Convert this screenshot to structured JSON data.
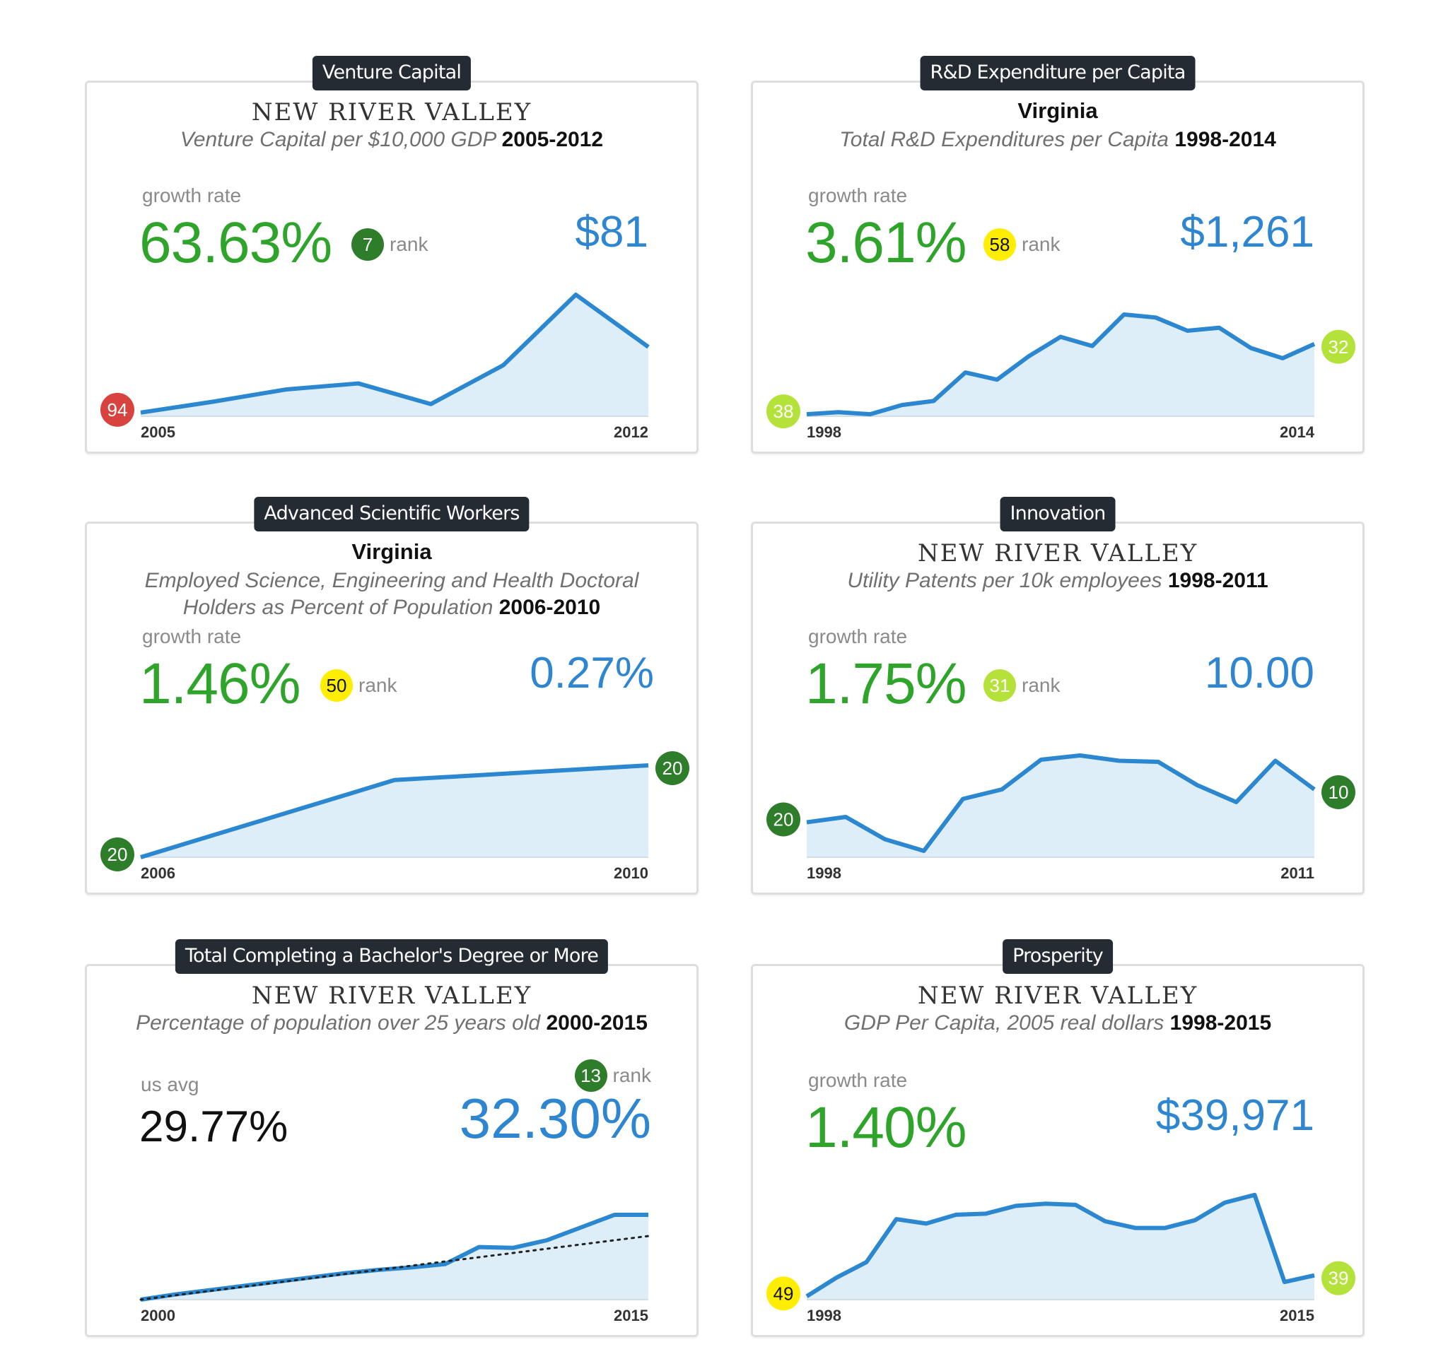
{
  "colors": {
    "tag_bg": "#252b33",
    "growth": "#2ea52a",
    "value": "#2f86d0",
    "line": "#2a87d0",
    "area": "#ddeef9",
    "badge_red": "#d9433f",
    "badge_dark_green": "#2e7d2a",
    "badge_lime": "#b5e23a",
    "badge_yellow": "#ffee00"
  },
  "common": {
    "growth_label": "growth rate",
    "rank_label": "rank",
    "us_avg_label": "us avg"
  },
  "cards": [
    {
      "tag": "Venture Capital",
      "region": "NEW RIVER VALLEY",
      "subtitle": "Venture Capital per $10,000 GDP",
      "years": "2005-2012",
      "growth": "63.63%",
      "rank": "7",
      "rank_color": "#2e7d2a",
      "value": "$81"
    },
    {
      "tag": "R&D Expenditure per Capita",
      "region": "Virginia",
      "subtitle": "Total R&D Expenditures per Capita",
      "years": "1998-2014",
      "growth": "3.61%",
      "rank": "58",
      "rank_color": "#ffee00",
      "value": "$1,261"
    },
    {
      "tag": "Advanced Scientific Workers",
      "region": "Virginia",
      "subtitle_line1": "Employed Science, Engineering and Health Doctoral",
      "subtitle_line2": "Holders as Percent of Population",
      "years": "2006-2010",
      "growth": "1.46%",
      "rank": "50",
      "rank_color": "#ffee00",
      "value": "0.27%"
    },
    {
      "tag": "Innovation",
      "region": "NEW RIVER VALLEY",
      "subtitle": "Utility Patents per 10k employees",
      "years": "1998-2011",
      "growth": "1.75%",
      "rank": "31",
      "rank_color": "#b5e23a",
      "value": "10.00"
    },
    {
      "tag": "Total Completing a Bachelor's Degree or More",
      "region": "NEW RIVER VALLEY",
      "subtitle": "Percentage of population over 25 years old",
      "years": "2000-2015",
      "us_avg": "29.77%",
      "rank": "13",
      "rank_color": "#2e7d2a",
      "value": "32.30%"
    },
    {
      "tag": "Prosperity",
      "region": "NEW RIVER VALLEY",
      "subtitle": "GDP Per Capita, 2005 real dollars",
      "years": "1998-2015",
      "growth": "1.40%",
      "value": "$39,971"
    }
  ],
  "chart_data": [
    {
      "type": "area",
      "title": "Venture Capital",
      "x": [
        2005,
        2006,
        2007,
        2008,
        2009,
        2010,
        2011,
        2012
      ],
      "values": [
        3,
        12,
        22,
        27,
        10,
        42,
        100,
        57
      ],
      "x_tick_labels": [
        "2005",
        "2012"
      ],
      "ylim": [
        0,
        100
      ],
      "start_rank": "94",
      "start_rank_color": "#d9433f",
      "end_rank": null,
      "end_rank_color": null
    },
    {
      "type": "area",
      "title": "R&D Expenditure per Capita",
      "x": [
        1998,
        1999,
        2000,
        2001,
        2002,
        2003,
        2004,
        2005,
        2006,
        2007,
        2008,
        2009,
        2010,
        2011,
        2012,
        2013,
        2014
      ],
      "values": [
        2,
        4,
        2,
        11,
        15,
        43,
        36,
        59,
        78,
        69,
        100,
        97,
        84,
        87,
        67,
        57,
        71
      ],
      "x_tick_labels": [
        "1998",
        "2014"
      ],
      "ylim": [
        0,
        100
      ],
      "start_rank": "38",
      "start_rank_color": "#b5e23a",
      "end_rank": "32",
      "end_rank_color": "#b5e23a"
    },
    {
      "type": "area",
      "title": "Advanced Scientific Workers",
      "x": [
        2006,
        2008,
        2010
      ],
      "values": [
        0,
        84,
        100
      ],
      "x_tick_labels": [
        "2006",
        "2010"
      ],
      "ylim": [
        0,
        100
      ],
      "start_rank": "20",
      "start_rank_color": "#2e7d2a",
      "end_rank": "20",
      "end_rank_color": "#2e7d2a"
    },
    {
      "type": "area",
      "title": "Innovation",
      "x": [
        1998,
        1999,
        2000,
        2001,
        2002,
        2003,
        2004,
        2005,
        2006,
        2007,
        2008,
        2009,
        2010,
        2011
      ],
      "values": [
        33,
        38,
        17,
        6,
        55,
        64,
        92,
        96,
        91,
        90,
        68,
        52,
        91,
        64
      ],
      "x_tick_labels": [
        "1998",
        "2011"
      ],
      "ylim": [
        0,
        100
      ],
      "start_rank": "20",
      "start_rank_color": "#2e7d2a",
      "end_rank": "10",
      "end_rank_color": "#2e7d2a"
    },
    {
      "type": "area",
      "title": "Total Completing a Bachelor's Degree or More",
      "x": [
        2000,
        2001,
        2002,
        2003,
        2004,
        2005,
        2006,
        2007,
        2008,
        2009,
        2010,
        2011,
        2012,
        2013,
        2014,
        2015
      ],
      "values": [
        0,
        6,
        11,
        16,
        21,
        26,
        31,
        35,
        38,
        42,
        62,
        61,
        70,
        85,
        100,
        100
      ],
      "series": [
        {
          "name": "region",
          "values": [
            0,
            6,
            11,
            16,
            21,
            26,
            31,
            35,
            38,
            42,
            62,
            61,
            70,
            85,
            100,
            100
          ]
        },
        {
          "name": "us avg",
          "values": [
            0,
            5,
            10,
            15,
            20,
            25,
            30,
            35,
            40,
            45,
            50,
            55,
            60,
            65,
            70,
            75
          ]
        }
      ],
      "x_tick_labels": [
        "2000",
        "2015"
      ],
      "ylim": [
        0,
        100
      ],
      "start_rank": null,
      "start_rank_color": null,
      "end_rank": null,
      "end_rank_color": null
    },
    {
      "type": "area",
      "title": "Prosperity",
      "x": [
        1998,
        1999,
        2000,
        2001,
        2002,
        2003,
        2004,
        2005,
        2006,
        2007,
        2008,
        2009,
        2010,
        2011,
        2012,
        2013,
        2014,
        2015
      ],
      "values": [
        3,
        20,
        34,
        73,
        69,
        77,
        78,
        85,
        87,
        86,
        71,
        65,
        65,
        72,
        88,
        95,
        16,
        22
      ],
      "x_tick_labels": [
        "1998",
        "2015"
      ],
      "ylim": [
        0,
        100
      ],
      "start_rank": "49",
      "start_rank_color": "#ffee00",
      "end_rank": "39",
      "end_rank_color": "#b5e23a"
    }
  ]
}
